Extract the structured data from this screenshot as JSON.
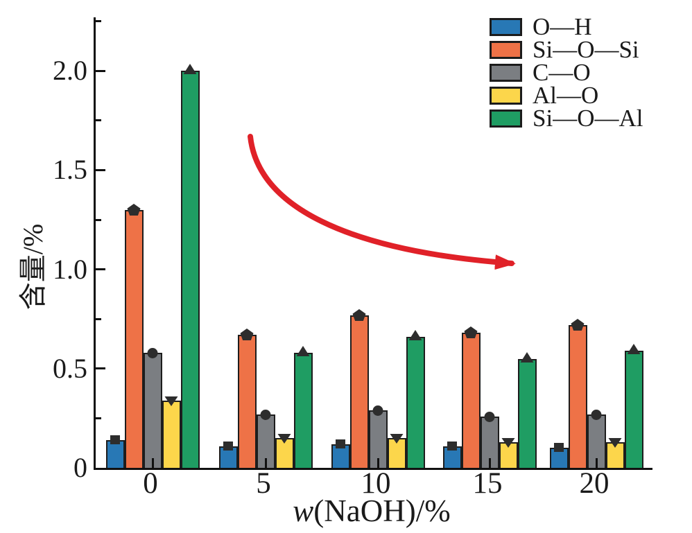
{
  "chart_data": {
    "type": "bar",
    "title": "",
    "xlabel": "w(NaOH)/%",
    "xlabel_italic_part": "w",
    "xlabel_rest": "(NaOH)/%",
    "ylabel": "含量/%",
    "categories": [
      "0",
      "5",
      "10",
      "15",
      "20"
    ],
    "series": [
      {
        "name": "O—H",
        "color": "#2878b5",
        "marker": "square",
        "values": [
          0.14,
          0.11,
          0.12,
          0.11,
          0.1
        ]
      },
      {
        "name": "Si—O—Si",
        "color": "#ee7247",
        "marker": "pentagon",
        "values": [
          1.3,
          0.67,
          0.77,
          0.68,
          0.72
        ]
      },
      {
        "name": "C—O",
        "color": "#7b7e82",
        "marker": "circle",
        "values": [
          0.58,
          0.27,
          0.29,
          0.26,
          0.27
        ]
      },
      {
        "name": "Al—O",
        "color": "#fcd64b",
        "marker": "triangle-down",
        "values": [
          0.34,
          0.15,
          0.15,
          0.13,
          0.13
        ]
      },
      {
        "name": "Si—O—Al",
        "color": "#1f9d63",
        "marker": "triangle-up",
        "values": [
          2.0,
          0.58,
          0.66,
          0.55,
          0.59
        ]
      }
    ],
    "ylim": [
      0,
      2.27
    ],
    "yticks": {
      "major": [
        {
          "v": 0,
          "label": "0"
        },
        {
          "v": 0.5,
          "label": "0.5"
        },
        {
          "v": 1.0,
          "label": "1.0"
        },
        {
          "v": 1.5,
          "label": "1.5"
        },
        {
          "v": 2.0,
          "label": "2.0"
        }
      ],
      "minor": [
        0.25,
        0.75,
        1.25,
        1.75,
        2.25
      ]
    },
    "grid": false,
    "legend_position": "top-right",
    "bar_edge_color": "#1d1d1d",
    "marker_color": "#2d2d2d",
    "annotation": {
      "type": "curved-arrow",
      "color": "#e02128",
      "direction": "down-right",
      "meaning": "decreasing trend"
    }
  }
}
